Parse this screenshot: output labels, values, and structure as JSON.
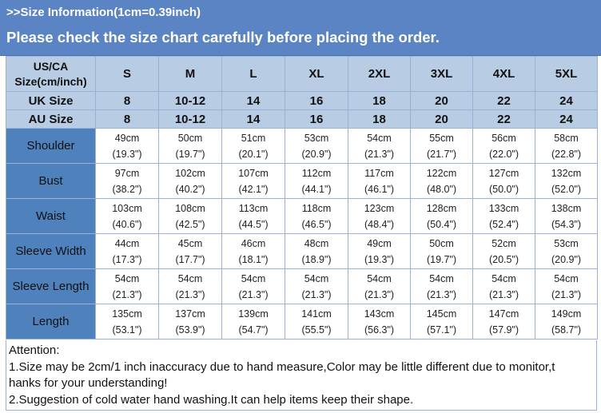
{
  "header": {
    "small_title": ">>Size Information(1cm=0.39inch)",
    "big_title": "Please check the size chart carefully before placing the order."
  },
  "table": {
    "corner_label_line1": "US/CA",
    "corner_label_line2": "Size(cm/inch)",
    "sizes": [
      "S",
      "M",
      "L",
      "XL",
      "2XL",
      "3XL",
      "4XL",
      "5XL"
    ],
    "region_rows": [
      {
        "label": "UK Size",
        "values": [
          "8",
          "10-12",
          "14",
          "16",
          "18",
          "20",
          "22",
          "24"
        ]
      },
      {
        "label": "AU Size",
        "values": [
          "8",
          "10-12",
          "14",
          "16",
          "18",
          "20",
          "22",
          "24"
        ]
      }
    ],
    "measurements": [
      {
        "label": "Shoulder",
        "values": [
          {
            "cm": "49cm",
            "inch": "(19.3\")"
          },
          {
            "cm": "50cm",
            "inch": "(19.7\")"
          },
          {
            "cm": "51cm",
            "inch": "(20.1\")"
          },
          {
            "cm": "53cm",
            "inch": "(20.9\")"
          },
          {
            "cm": "54cm",
            "inch": "(21.3\")"
          },
          {
            "cm": "55cm",
            "inch": "(21.7\")"
          },
          {
            "cm": "56cm",
            "inch": "(22.0\")"
          },
          {
            "cm": "58cm",
            "inch": "(22.8\")"
          }
        ]
      },
      {
        "label": "Bust",
        "values": [
          {
            "cm": "97cm",
            "inch": "(38.2\")"
          },
          {
            "cm": "102cm",
            "inch": "(40.2\")"
          },
          {
            "cm": "107cm",
            "inch": "(42.1\")"
          },
          {
            "cm": "112cm",
            "inch": "(44.1\")"
          },
          {
            "cm": "117cm",
            "inch": "(46.1\")"
          },
          {
            "cm": "122cm",
            "inch": "(48.0\")"
          },
          {
            "cm": "127cm",
            "inch": "(50.0\")"
          },
          {
            "cm": "132cm",
            "inch": "(52.0\")"
          }
        ]
      },
      {
        "label": "Waist",
        "values": [
          {
            "cm": "103cm",
            "inch": "(40.6\")"
          },
          {
            "cm": "108cm",
            "inch": "(42.5\")"
          },
          {
            "cm": "113cm",
            "inch": "(44.5\")"
          },
          {
            "cm": "118cm",
            "inch": "(46.5\")"
          },
          {
            "cm": "123cm",
            "inch": "(48.4\")"
          },
          {
            "cm": "128cm",
            "inch": "(50.4\")"
          },
          {
            "cm": "133cm",
            "inch": "(52.4\")"
          },
          {
            "cm": "138cm",
            "inch": "(54.3\")"
          }
        ]
      },
      {
        "label": "Sleeve Width",
        "values": [
          {
            "cm": "44cm",
            "inch": "(17.3\")"
          },
          {
            "cm": "45cm",
            "inch": "(17.7\")"
          },
          {
            "cm": "46cm",
            "inch": "(18.1\")"
          },
          {
            "cm": "48cm",
            "inch": "(18.9\")"
          },
          {
            "cm": "49cm",
            "inch": "(19.3\")"
          },
          {
            "cm": "50cm",
            "inch": "(19.7\")"
          },
          {
            "cm": "52cm",
            "inch": "(20.5\")"
          },
          {
            "cm": "53cm",
            "inch": "(20.9\")"
          }
        ]
      },
      {
        "label": "Sleeve Length",
        "values": [
          {
            "cm": "54cm",
            "inch": "(21.3\")"
          },
          {
            "cm": "54cm",
            "inch": "(21.3\")"
          },
          {
            "cm": "54cm",
            "inch": "(21.3\")"
          },
          {
            "cm": "54cm",
            "inch": "(21.3\")"
          },
          {
            "cm": "54cm",
            "inch": "(21.3\")"
          },
          {
            "cm": "54cm",
            "inch": "(21.3\")"
          },
          {
            "cm": "54cm",
            "inch": "(21.3\")"
          },
          {
            "cm": "54cm",
            "inch": "(21.3\")"
          }
        ]
      },
      {
        "label": "Length",
        "values": [
          {
            "cm": "135cm",
            "inch": "(53.1\")"
          },
          {
            "cm": "137cm",
            "inch": "(53.9\")"
          },
          {
            "cm": "139cm",
            "inch": "(54.7\")"
          },
          {
            "cm": "141cm",
            "inch": "(55.5\")"
          },
          {
            "cm": "143cm",
            "inch": "(56.3\")"
          },
          {
            "cm": "145cm",
            "inch": "(57.1\")"
          },
          {
            "cm": "147cm",
            "inch": "(57.9\")"
          },
          {
            "cm": "149cm",
            "inch": "(58.7\")"
          }
        ]
      }
    ]
  },
  "attention": {
    "title": "Attention:",
    "line1": "1.Size may be 2cm/1 inch inaccuracy due to hand measure,Color may be little different due to monitor,t",
    "line1_cont": "hanks for your understanding!",
    "line2": "2.Suggestion of cold water hand washing.It can help items keep their shape."
  },
  "colors": {
    "header_bg": "#5b84c4",
    "size_header_bg": "#b8cce4",
    "label_bg": "#4f81bd",
    "border": "#9ab0d4"
  }
}
